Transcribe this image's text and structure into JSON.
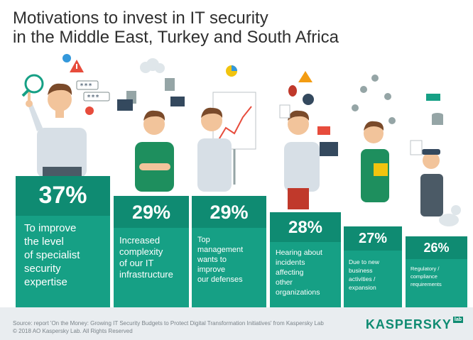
{
  "title_line1": "Motivations to invest in IT security",
  "title_line2": "in the Middle East, Turkey and South Africa",
  "bars": [
    {
      "pct": "37%",
      "text": [
        "To improve",
        "the level",
        "of specialist",
        "security",
        "expertise"
      ]
    },
    {
      "pct": "29%",
      "text": [
        "Increased",
        "complexity",
        "of our IT",
        "infrastructure"
      ]
    },
    {
      "pct": "29%",
      "text": [
        "Top",
        "management",
        "wants to",
        "improve",
        "our defenses"
      ]
    },
    {
      "pct": "28%",
      "text": [
        "Hearing about",
        "incidents",
        "affecting",
        "other",
        "organizations"
      ]
    },
    {
      "pct": "27%",
      "text": [
        "Due to new",
        "business",
        "activities /",
        "expansion"
      ]
    },
    {
      "pct": "26%",
      "text": [
        "Regulatory /",
        "compliance",
        "requirements"
      ]
    }
  ],
  "footer": {
    "source": "Source: report 'On the Money: Growing IT Security Budgets to Protect Digital Transformation Initiatives' from Kaspersky Lab",
    "copyright": "© 2018 AO Kaspersky Lab. All Rights Reserved"
  },
  "logo": {
    "name": "KASPERSKY",
    "lab": "lab"
  },
  "colors": {
    "teal": "#16a085",
    "teal_dark": "#0f8b72",
    "title": "#2f2f2f"
  },
  "icons": [
    "magnifier-icon",
    "warning-icon",
    "password-icon",
    "cloud-icon",
    "server-icon",
    "monitor-icon",
    "chart-icon",
    "bug-icon",
    "skull-icon",
    "location-pin-icon",
    "database-icon",
    "document-icon"
  ]
}
